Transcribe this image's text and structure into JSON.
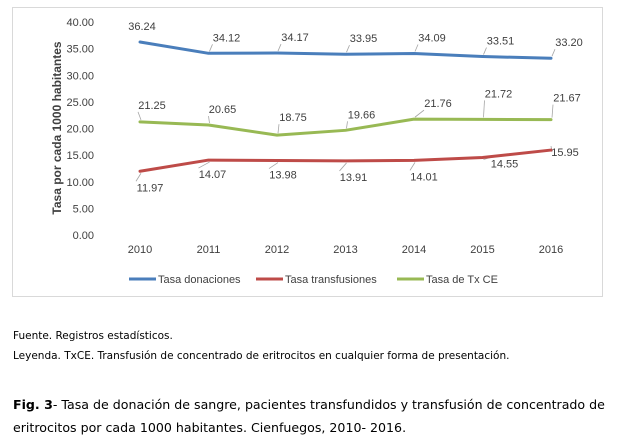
{
  "chart_data": {
    "type": "line",
    "categories": [
      "2010",
      "2011",
      "2012",
      "2013",
      "2014",
      "2015",
      "2016"
    ],
    "ylabel": "Tasa por cada 1000 habitantes",
    "xlabel": "",
    "ylim": [
      0,
      40
    ],
    "yticks": [
      "0.00",
      "5.00",
      "10.00",
      "15.00",
      "20.00",
      "25.00",
      "30.00",
      "35.00",
      "40.00"
    ],
    "grid": false,
    "legend_position": "bottom",
    "series": [
      {
        "name": "Tasa donaciones",
        "color": "#4a7ebb",
        "values": [
          36.24,
          34.12,
          34.17,
          33.95,
          34.09,
          33.51,
          33.2
        ],
        "labels": [
          "36.24",
          "34.12",
          "34.17",
          "33.95",
          "34.09",
          "33.51",
          "33.20"
        ]
      },
      {
        "name": "Tasa transfusiones",
        "color": "#be4b48",
        "values": [
          11.97,
          14.07,
          13.98,
          13.91,
          14.01,
          14.55,
          15.95
        ],
        "labels": [
          "11.97",
          "14.07",
          "13.98",
          "13.91",
          "14.01",
          "14.55",
          "15.95"
        ]
      },
      {
        "name": "Tasa de Tx CE",
        "color": "#98b954",
        "values": [
          21.25,
          20.65,
          18.75,
          19.66,
          21.76,
          21.72,
          21.67
        ],
        "labels": [
          "21.25",
          "20.65",
          "18.75",
          "19.66",
          "21.76",
          "21.72",
          "21.67"
        ]
      }
    ]
  },
  "notes": {
    "source": "Fuente. Registros estadísticos.",
    "legend": "Leyenda. TxCE. Transfusión de concentrado de eritrocitos en cualquier forma de presentación."
  },
  "caption": {
    "label": "Fig. 3",
    "text": "- Tasa de donación de sangre, pacientes transfundidos y transfusión de concentrado de eritrocitos por cada 1000 habitantes. Cienfuegos, 2010- 2016."
  }
}
